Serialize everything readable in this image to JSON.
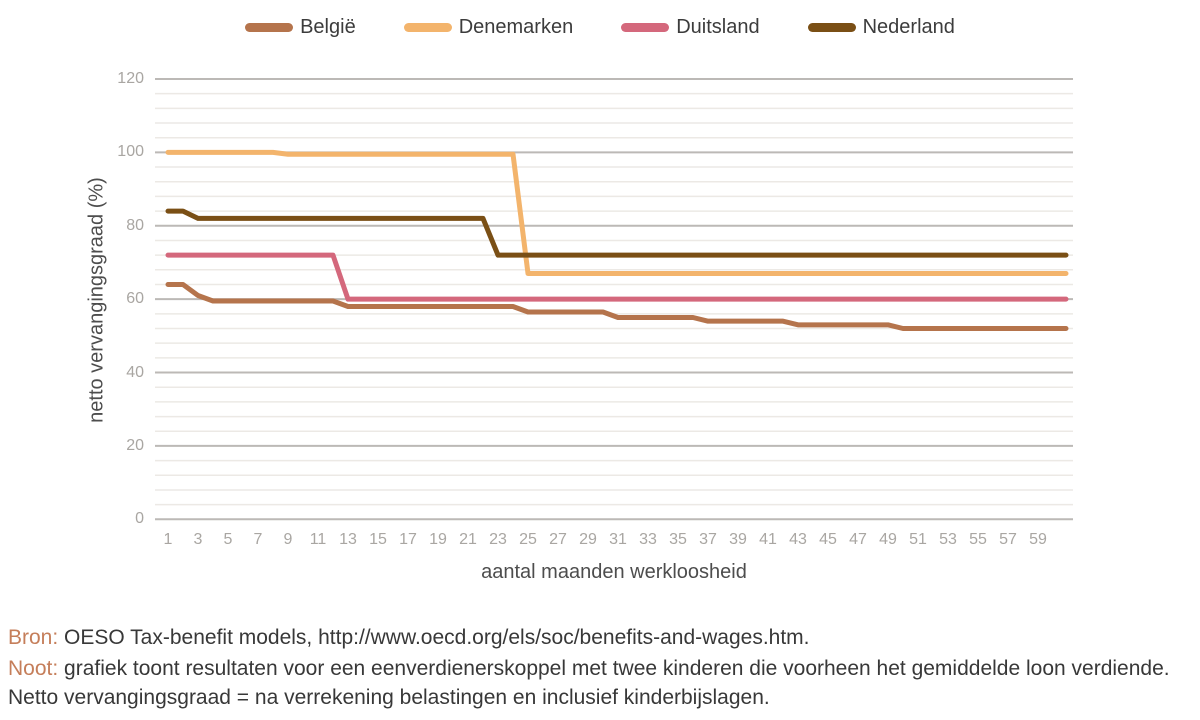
{
  "legend": {
    "items": [
      {
        "label": "België",
        "color": "#b5744c"
      },
      {
        "label": "Denemarken",
        "color": "#f3b46c"
      },
      {
        "label": "Duitsland",
        "color": "#d4687c"
      },
      {
        "label": "Nederland",
        "color": "#7a4f15"
      }
    ]
  },
  "chart_data": {
    "type": "line",
    "title": "",
    "xlabel": "aantal maanden werkloosheid",
    "ylabel": "netto vervangingsgraad (%)",
    "ylim": [
      0,
      120
    ],
    "xlim": [
      1,
      60
    ],
    "grid": "horizontal, major lines every 20 with light minor lines every 4",
    "legend_position": "top",
    "y_major_ticks": [
      0,
      20,
      40,
      60,
      80,
      100,
      120
    ],
    "y_minor_step": 4,
    "x_tick_labels": [
      1,
      3,
      5,
      7,
      9,
      11,
      13,
      15,
      17,
      19,
      21,
      23,
      25,
      27,
      29,
      31,
      33,
      35,
      37,
      39,
      41,
      43,
      45,
      47,
      49,
      51,
      53,
      55,
      57,
      59
    ],
    "x": [
      1,
      2,
      3,
      4,
      5,
      6,
      7,
      8,
      9,
      10,
      11,
      12,
      13,
      14,
      15,
      16,
      17,
      18,
      19,
      20,
      21,
      22,
      23,
      24,
      25,
      26,
      27,
      28,
      29,
      30,
      31,
      32,
      33,
      34,
      35,
      36,
      37,
      38,
      39,
      40,
      41,
      42,
      43,
      44,
      45,
      46,
      47,
      48,
      49,
      50,
      51,
      52,
      53,
      54,
      55,
      56,
      57,
      58,
      59,
      60
    ],
    "series": [
      {
        "name": "België",
        "color": "#b5744c",
        "values": [
          64,
          64,
          61,
          59.5,
          59.5,
          59.5,
          59.5,
          59.5,
          59.5,
          59.5,
          59.5,
          59.5,
          58,
          58,
          58,
          58,
          58,
          58,
          58,
          58,
          58,
          58,
          58,
          58,
          56.5,
          56.5,
          56.5,
          56.5,
          56.5,
          56.5,
          55,
          55,
          55,
          55,
          55,
          55,
          54,
          54,
          54,
          54,
          54,
          54,
          53,
          53,
          53,
          53,
          53,
          53,
          53,
          52,
          52,
          52,
          52,
          52,
          52,
          52,
          52,
          52,
          52,
          52
        ]
      },
      {
        "name": "Denemarken",
        "color": "#f3b46c",
        "values": [
          100,
          100,
          100,
          100,
          100,
          100,
          100,
          100,
          99.5,
          99.5,
          99.5,
          99.5,
          99.5,
          99.5,
          99.5,
          99.5,
          99.5,
          99.5,
          99.5,
          99.5,
          99.5,
          99.5,
          99.5,
          99.5,
          67,
          67,
          67,
          67,
          67,
          67,
          67,
          67,
          67,
          67,
          67,
          67,
          67,
          67,
          67,
          67,
          67,
          67,
          67,
          67,
          67,
          67,
          67,
          67,
          67,
          67,
          67,
          67,
          67,
          67,
          67,
          67,
          67,
          67,
          67,
          67
        ]
      },
      {
        "name": "Duitsland",
        "color": "#d4687c",
        "values": [
          72,
          72,
          72,
          72,
          72,
          72,
          72,
          72,
          72,
          72,
          72,
          72,
          60,
          60,
          60,
          60,
          60,
          60,
          60,
          60,
          60,
          60,
          60,
          60,
          60,
          60,
          60,
          60,
          60,
          60,
          60,
          60,
          60,
          60,
          60,
          60,
          60,
          60,
          60,
          60,
          60,
          60,
          60,
          60,
          60,
          60,
          60,
          60,
          60,
          60,
          60,
          60,
          60,
          60,
          60,
          60,
          60,
          60,
          60,
          60
        ]
      },
      {
        "name": "Nederland",
        "color": "#7a4f15",
        "values": [
          84,
          84,
          82,
          82,
          82,
          82,
          82,
          82,
          82,
          82,
          82,
          82,
          82,
          82,
          82,
          82,
          82,
          82,
          82,
          82,
          82,
          82,
          72,
          72,
          72,
          72,
          72,
          72,
          72,
          72,
          72,
          72,
          72,
          72,
          72,
          72,
          72,
          72,
          72,
          72,
          72,
          72,
          72,
          72,
          72,
          72,
          72,
          72,
          72,
          72,
          72,
          72,
          72,
          72,
          72,
          72,
          72,
          72,
          72,
          72
        ]
      }
    ]
  },
  "footer": {
    "bron_label": "Bron:",
    "bron_text": " OESO Tax-benefit models, http://www.oecd.org/els/soc/benefits-and-wages.htm.",
    "noot_label": "Noot:",
    "noot_text": " grafiek toont resultaten voor een eenverdienerskoppel met twee kinderen die voorheen het gemiddelde loon verdiende. Netto vervangingsgraad = na verrekening belastingen en inclusief kinderbijslagen."
  }
}
